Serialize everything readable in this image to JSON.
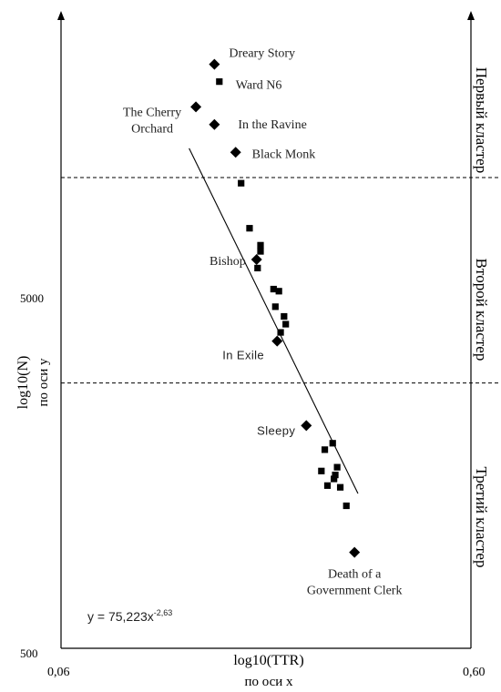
{
  "chart_data": {
    "type": "scatter",
    "xlabel": "log10(TTR)",
    "xlabel_sub": "по оси x",
    "ylabel": "log10(N)",
    "ylabel_sub": "по оси y",
    "x_scale": "log",
    "y_scale": "log",
    "xlim": [
      0.06,
      0.6
    ],
    "ylim": [
      500,
      50000
    ],
    "x_ticks": [
      "0,06",
      "0,60"
    ],
    "y_ticks": [
      "500",
      "5000"
    ],
    "equation": "y = 75,223x",
    "equation_exp": "-2,63",
    "cluster_labels": [
      "Первый кластер",
      "Второй кластер",
      "Третий кластер"
    ],
    "cluster_boundaries_y": [
      15000,
      3400
    ],
    "trendline": {
      "a": 75.223,
      "b": -2.63
    },
    "labeled_works": [
      {
        "label": "Dreary Story",
        "x": 0.142,
        "y": 34000,
        "marker": "diamond"
      },
      {
        "label": "Ward N6",
        "x": 0.146,
        "y": 30000,
        "marker": "square"
      },
      {
        "label": "The Cherry\nOrchard",
        "x": 0.128,
        "y": 25000,
        "marker": "diamond"
      },
      {
        "label": "In the Ravine",
        "x": 0.142,
        "y": 22000,
        "marker": "diamond"
      },
      {
        "label": "Black Monk",
        "x": 0.16,
        "y": 18000,
        "marker": "diamond"
      },
      {
        "label": "Bishop",
        "x": 0.18,
        "y": 8300,
        "marker": "diamond"
      },
      {
        "label": "In Exile",
        "x": 0.202,
        "y": 4600,
        "marker": "diamond"
      },
      {
        "label": "Sleepy",
        "x": 0.238,
        "y": 2500,
        "marker": "diamond"
      },
      {
        "label": "Death of a\nGovernment Clerk",
        "x": 0.312,
        "y": 1000,
        "marker": "diamond"
      }
    ],
    "other_works": [
      [
        0.165,
        14400
      ],
      [
        0.173,
        10400
      ],
      [
        0.184,
        9200
      ],
      [
        0.184,
        8800
      ],
      [
        0.181,
        7800
      ],
      [
        0.198,
        6700
      ],
      [
        0.204,
        6600
      ],
      [
        0.2,
        5900
      ],
      [
        0.21,
        5500
      ],
      [
        0.212,
        5200
      ],
      [
        0.206,
        4900
      ],
      [
        0.264,
        2100
      ],
      [
        0.276,
        2200
      ],
      [
        0.28,
        1750
      ],
      [
        0.283,
        1850
      ],
      [
        0.278,
        1700
      ],
      [
        0.268,
        1620
      ],
      [
        0.288,
        1600
      ],
      [
        0.298,
        1400
      ],
      [
        0.259,
        1800
      ]
    ]
  }
}
